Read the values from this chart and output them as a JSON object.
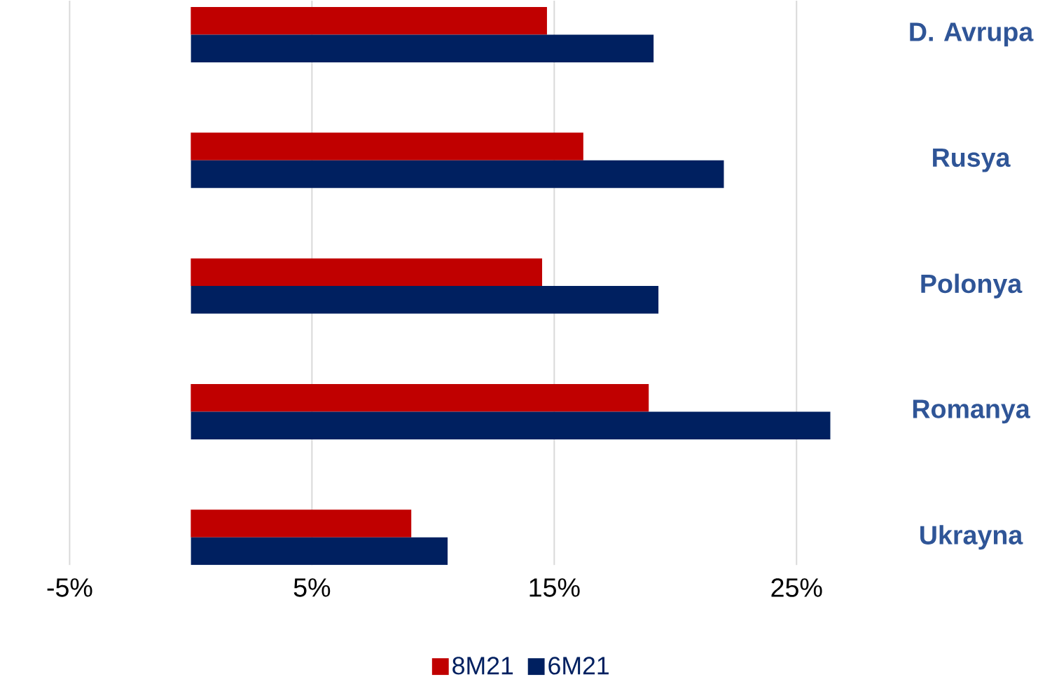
{
  "chart_data": {
    "type": "bar",
    "orientation": "horizontal",
    "categories": [
      "D. Avrupa",
      "Rusya",
      "Polonya",
      "Romanya",
      "Ukrayna"
    ],
    "series": [
      {
        "name": "8M21",
        "color": "#c00000",
        "values": [
          14.7,
          16.2,
          14.5,
          18.9,
          9.1
        ]
      },
      {
        "name": "6M21",
        "color": "#002060",
        "values": [
          19.1,
          22.0,
          19.3,
          26.4,
          10.6
        ]
      }
    ],
    "xlim": [
      -5,
      26.4
    ],
    "xticks": [
      {
        "value": -5,
        "label": "-5%"
      },
      {
        "value": 5,
        "label": "5%"
      },
      {
        "value": 15,
        "label": "15%"
      },
      {
        "value": 25,
        "label": "25%"
      }
    ],
    "grid": "x",
    "legend": "bottom"
  }
}
